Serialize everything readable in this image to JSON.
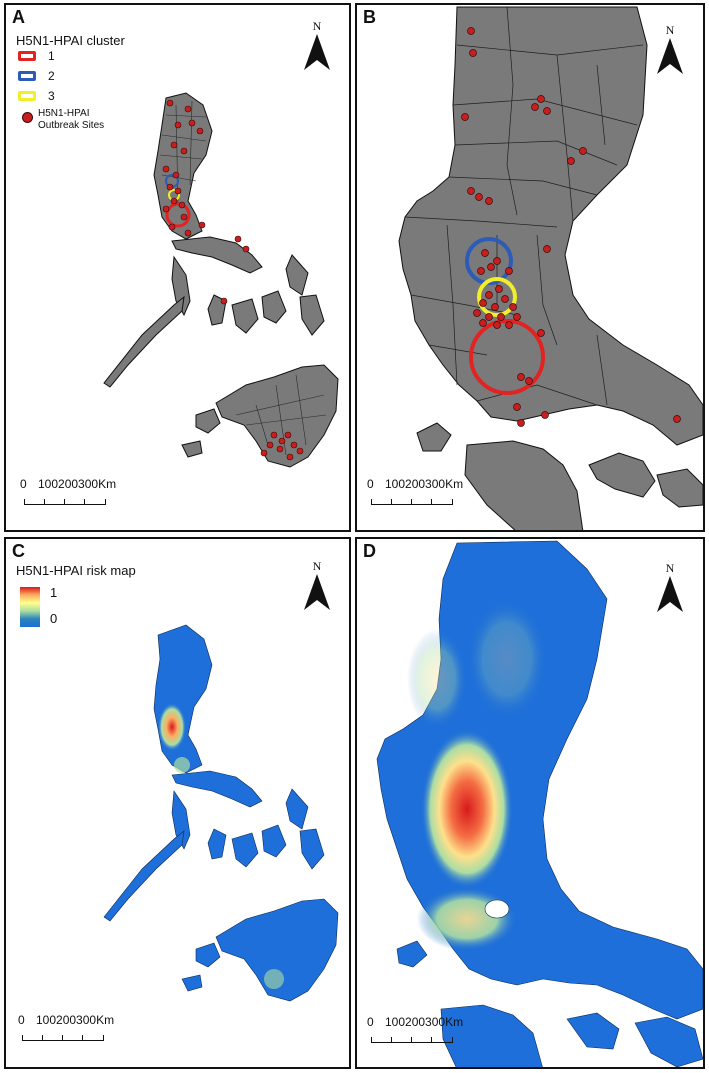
{
  "panels": {
    "a": {
      "label": "A"
    },
    "b": {
      "label": "B"
    },
    "c": {
      "label": "C"
    },
    "d": {
      "label": "D"
    }
  },
  "north_arrow": {
    "label": "N"
  },
  "scale_bar": {
    "label0": "0",
    "label_rest": "100200300Km"
  },
  "cluster_legend": {
    "title": "H5N1-HPAI cluster",
    "items": [
      {
        "label": "1",
        "color": "#e32222"
      },
      {
        "label": "2",
        "color": "#2d5bb8"
      },
      {
        "label": "3",
        "color": "#f2ef2a"
      }
    ],
    "outbreak_label_line1": "H5N1-HPAI",
    "outbreak_label_line2": "Outbreak Sites"
  },
  "risk_legend": {
    "title": "H5N1-HPAI risk map",
    "max_label": "1",
    "min_label": "0"
  },
  "colors": {
    "land": "#7a7a7a",
    "outbreak": "#c81e1e",
    "risk_low": "#1e6fd9",
    "risk_high": "#d7191c"
  }
}
